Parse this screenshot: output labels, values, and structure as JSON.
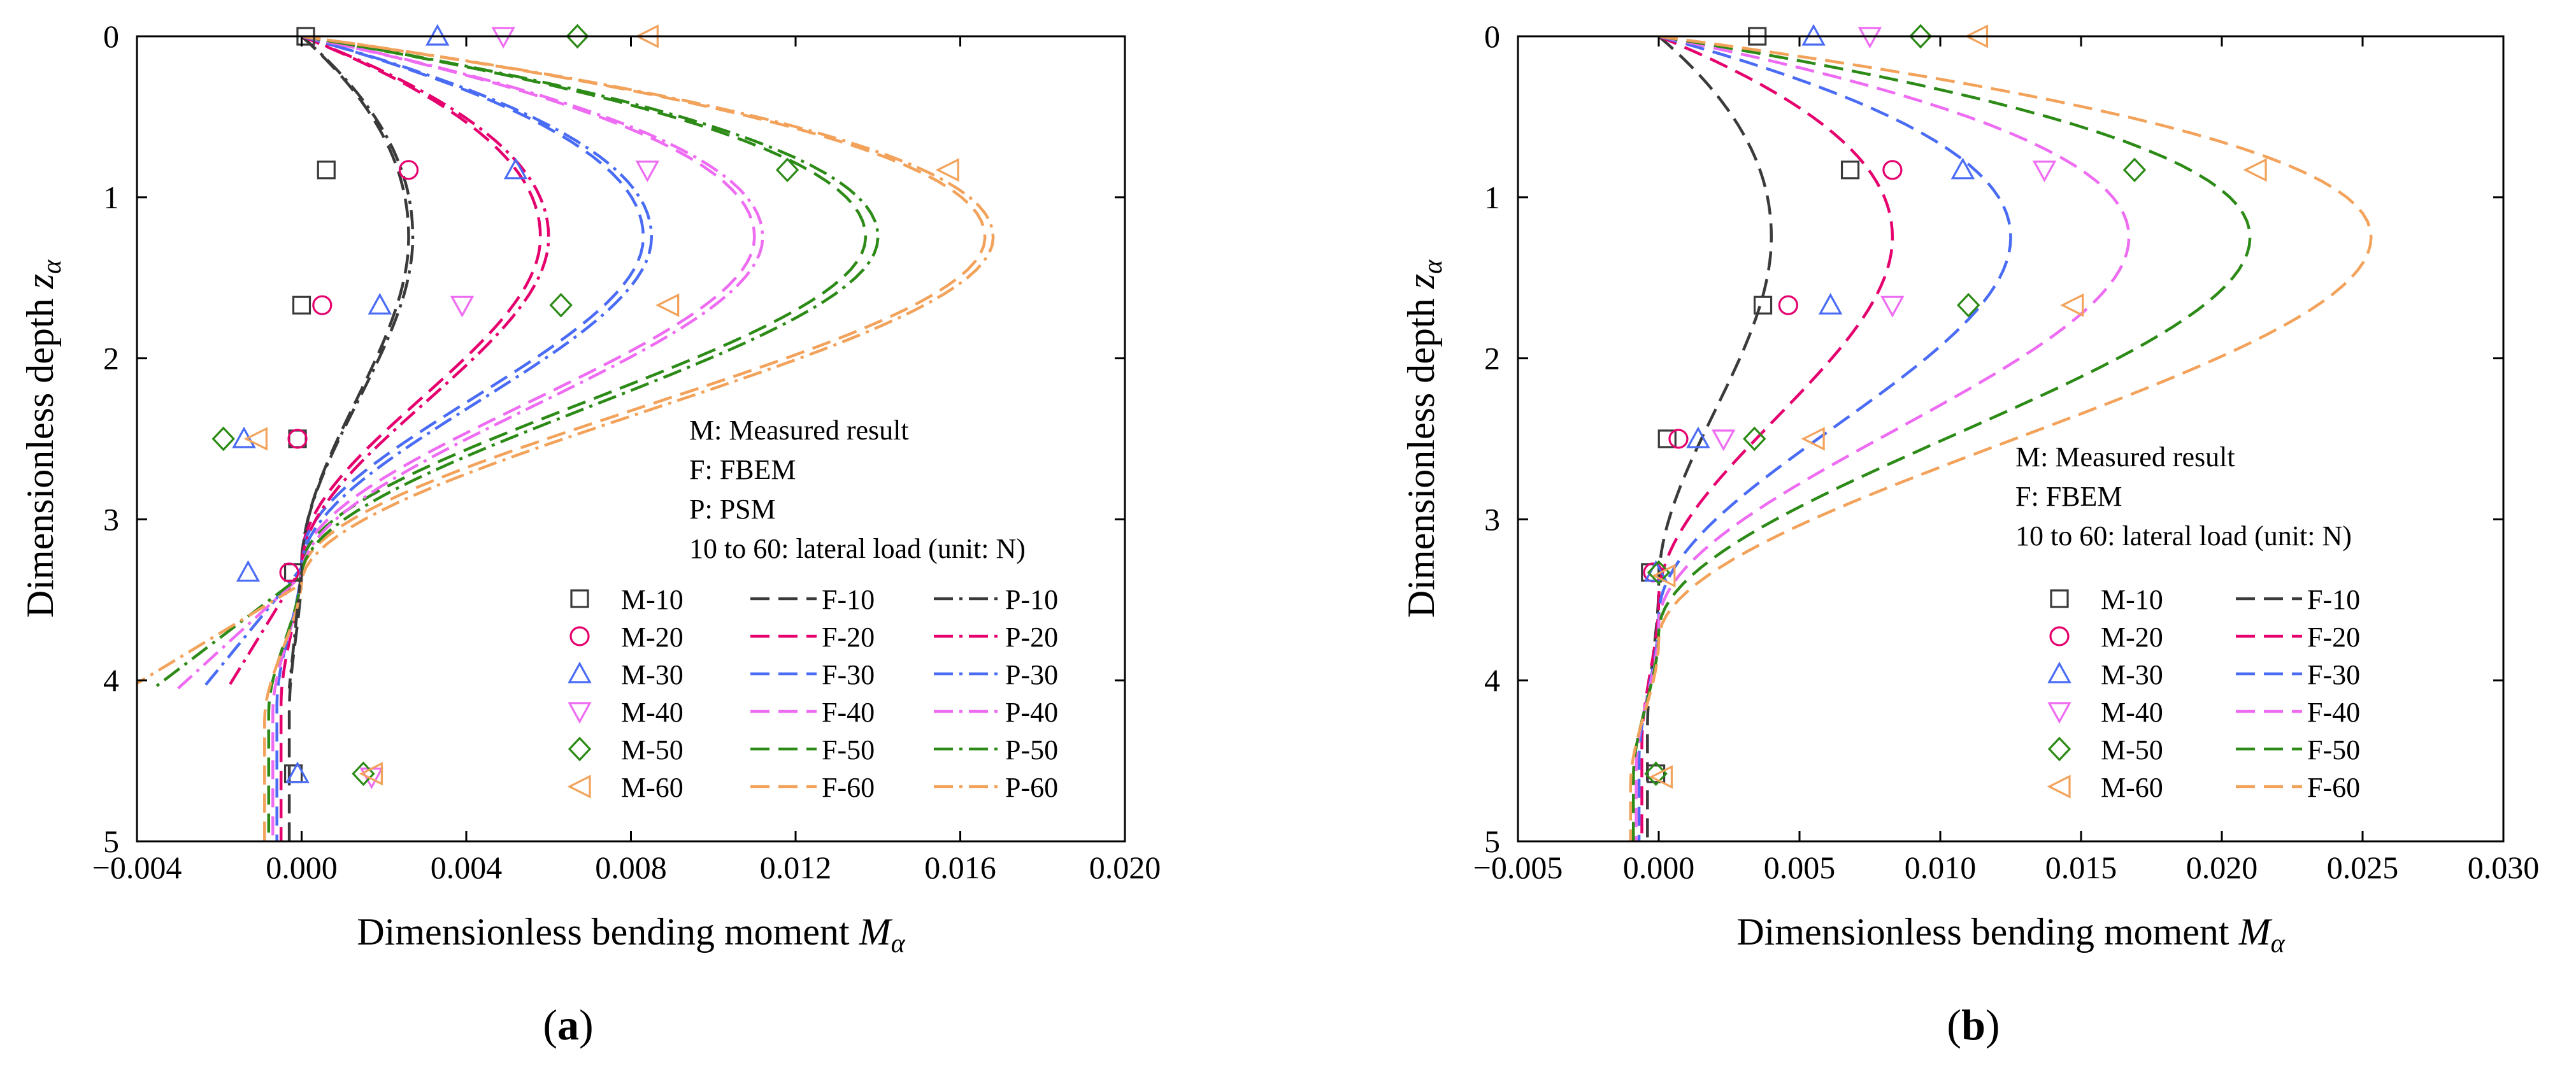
{
  "figure": {
    "panels": [
      "(a)",
      "(b)"
    ]
  },
  "colors": {
    "10": "#3a3a3a",
    "20": "#e5006e",
    "30": "#4a6cf5",
    "40": "#ee6cf2",
    "50": "#2c8a16",
    "60": "#f2a25a"
  },
  "chart_data": [
    {
      "type": "line",
      "panel_label": "(a)",
      "xlabel": "Dimensionless bending moment ",
      "xlabel_symbol": "M",
      "xlabel_sub": "α",
      "ylabel": "Dimensionless depth ",
      "ylabel_symbol": "z",
      "ylabel_sub": "α",
      "xlim": [
        -0.004,
        0.02
      ],
      "ylim": [
        0,
        5
      ],
      "y_inverted": true,
      "x_ticks": [
        -0.004,
        0.0,
        0.004,
        0.008,
        0.012,
        0.016,
        0.02
      ],
      "x_tick_labels": [
        "−0.004",
        "0.000",
        "0.004",
        "0.008",
        "0.012",
        "0.016",
        "0.020"
      ],
      "y_ticks": [
        0,
        1,
        2,
        3,
        4,
        5
      ],
      "y_tick_labels": [
        "0",
        "1",
        "2",
        "3",
        "4",
        "5"
      ],
      "annotation_lines": [
        "M: Measured result",
        "F: FBEM",
        "P: PSM",
        "10 to 60: lateral load (unit: N)"
      ],
      "legend": {
        "measured": [
          "M-10",
          "M-20",
          "M-30",
          "M-40",
          "M-50",
          "M-60"
        ],
        "fbem": [
          "F-10",
          "F-20",
          "F-30",
          "F-40",
          "F-50",
          "F-60"
        ],
        "psm": [
          "P-10",
          "P-20",
          "P-30",
          "P-40",
          "P-50",
          "P-60"
        ]
      },
      "series": [
        {
          "name": "M-10",
          "kind": "measured",
          "load": "10",
          "marker": "square",
          "points": [
            [
              0.0001,
              0.0
            ],
            [
              0.0006,
              0.83
            ],
            [
              0.0,
              1.67
            ],
            [
              -0.0001,
              2.5
            ],
            [
              -0.0002,
              3.33
            ],
            [
              -0.0002,
              4.58
            ]
          ]
        },
        {
          "name": "M-20",
          "kind": "measured",
          "load": "20",
          "marker": "circle",
          "points": [
            [
              0.0026,
              0.83
            ],
            [
              0.0005,
              1.67
            ],
            [
              -0.0001,
              2.5
            ],
            [
              -0.0003,
              3.33
            ]
          ]
        },
        {
          "name": "M-30",
          "kind": "measured",
          "load": "30",
          "marker": "triangle-up",
          "points": [
            [
              0.0033,
              0.0
            ],
            [
              0.0052,
              0.83
            ],
            [
              0.0019,
              1.67
            ],
            [
              -0.0014,
              2.5
            ],
            [
              -0.0013,
              3.33
            ],
            [
              -0.0001,
              4.58
            ]
          ]
        },
        {
          "name": "M-40",
          "kind": "measured",
          "load": "40",
          "marker": "triangle-down",
          "points": [
            [
              0.0049,
              0.0
            ],
            [
              0.0084,
              0.83
            ],
            [
              0.0039,
              1.67
            ],
            [
              0.0017,
              4.6
            ]
          ]
        },
        {
          "name": "M-50",
          "kind": "measured",
          "load": "50",
          "marker": "diamond",
          "points": [
            [
              0.0067,
              0.0
            ],
            [
              0.0118,
              0.83
            ],
            [
              0.0063,
              1.67
            ],
            [
              -0.0019,
              2.5
            ],
            [
              0.0015,
              4.58
            ]
          ]
        },
        {
          "name": "M-60",
          "kind": "measured",
          "load": "60",
          "marker": "triangle-left",
          "points": [
            [
              0.0084,
              0.0
            ],
            [
              0.0157,
              0.83
            ],
            [
              0.0089,
              1.67
            ],
            [
              -0.0011,
              2.5
            ],
            [
              0.0017,
              4.58
            ]
          ]
        },
        {
          "name": "F-10",
          "kind": "fbem",
          "load": "10",
          "peak": 0.0026,
          "z_zero": 3.3,
          "tail": -0.0003
        },
        {
          "name": "F-20",
          "kind": "fbem",
          "load": "20",
          "peak": 0.0058,
          "z_zero": 3.25,
          "tail": -0.0005
        },
        {
          "name": "F-30",
          "kind": "fbem",
          "load": "30",
          "peak": 0.0083,
          "z_zero": 3.25,
          "tail": -0.0006
        },
        {
          "name": "F-40",
          "kind": "fbem",
          "load": "40",
          "peak": 0.011,
          "z_zero": 3.3,
          "tail": -0.0007
        },
        {
          "name": "F-50",
          "kind": "fbem",
          "load": "50",
          "peak": 0.0137,
          "z_zero": 3.3,
          "tail": -0.0008
        },
        {
          "name": "F-60",
          "kind": "fbem",
          "load": "60",
          "peak": 0.0166,
          "z_zero": 3.35,
          "tail": -0.0009
        },
        {
          "name": "P-10",
          "kind": "psm",
          "load": "10",
          "peak": 0.0027,
          "z_zero": 3.3,
          "tail": -0.0003
        },
        {
          "name": "P-20",
          "kind": "psm",
          "load": "20",
          "peak": 0.006,
          "z_zero": 3.3,
          "tail": -0.0018
        },
        {
          "name": "P-30",
          "kind": "psm",
          "load": "30",
          "peak": 0.0085,
          "z_zero": 3.3,
          "tail": -0.0024
        },
        {
          "name": "P-40",
          "kind": "psm",
          "load": "40",
          "peak": 0.0112,
          "z_zero": 3.35,
          "tail": -0.003
        },
        {
          "name": "P-50",
          "kind": "psm",
          "load": "50",
          "peak": 0.014,
          "z_zero": 3.35,
          "tail": -0.0036
        },
        {
          "name": "P-60",
          "kind": "psm",
          "load": "60",
          "peak": 0.0168,
          "z_zero": 3.4,
          "tail": -0.0042
        }
      ]
    },
    {
      "type": "line",
      "panel_label": "(b)",
      "xlabel": "Dimensionless bending moment ",
      "xlabel_symbol": "M",
      "xlabel_sub": "α",
      "ylabel": "Dimensionless depth ",
      "ylabel_symbol": "z",
      "ylabel_sub": "α",
      "xlim": [
        -0.005,
        0.03
      ],
      "ylim": [
        0,
        5
      ],
      "y_inverted": true,
      "x_ticks": [
        -0.005,
        0.0,
        0.005,
        0.01,
        0.015,
        0.02,
        0.025,
        0.03
      ],
      "x_tick_labels": [
        "−0.005",
        "0.000",
        "0.005",
        "0.010",
        "0.015",
        "0.020",
        "0.025",
        "0.030"
      ],
      "y_ticks": [
        0,
        1,
        2,
        3,
        4,
        5
      ],
      "y_tick_labels": [
        "0",
        "1",
        "2",
        "3",
        "4",
        "5"
      ],
      "annotation_lines": [
        "M: Measured result",
        "F: FBEM",
        "10 to 60: lateral load (unit: N)"
      ],
      "legend": {
        "measured": [
          "M-10",
          "M-20",
          "M-30",
          "M-40",
          "M-50",
          "M-60"
        ],
        "fbem": [
          "F-10",
          "F-20",
          "F-30",
          "F-40",
          "F-50",
          "F-60"
        ]
      },
      "series": [
        {
          "name": "M-10",
          "kind": "measured",
          "load": "10",
          "marker": "square",
          "points": [
            [
              0.0035,
              0.0
            ],
            [
              0.0068,
              0.83
            ],
            [
              0.0037,
              1.67
            ],
            [
              0.0003,
              2.5
            ],
            [
              -0.0003,
              3.33
            ],
            [
              -0.0001,
              4.58
            ]
          ]
        },
        {
          "name": "M-20",
          "kind": "measured",
          "load": "20",
          "marker": "circle",
          "points": [
            [
              0.0083,
              0.83
            ],
            [
              0.0046,
              1.67
            ],
            [
              0.0007,
              2.5
            ],
            [
              -0.0002,
              3.33
            ]
          ]
        },
        {
          "name": "M-30",
          "kind": "measured",
          "load": "30",
          "marker": "triangle-up",
          "points": [
            [
              0.0055,
              0.0
            ],
            [
              0.0108,
              0.83
            ],
            [
              0.0061,
              1.67
            ],
            [
              0.0014,
              2.5
            ],
            [
              -0.0001,
              3.33
            ]
          ]
        },
        {
          "name": "M-40",
          "kind": "measured",
          "load": "40",
          "marker": "triangle-down",
          "points": [
            [
              0.0075,
              0.0
            ],
            [
              0.0137,
              0.83
            ],
            [
              0.0083,
              1.67
            ],
            [
              0.0023,
              2.5
            ]
          ]
        },
        {
          "name": "M-50",
          "kind": "measured",
          "load": "50",
          "marker": "diamond",
          "points": [
            [
              0.0093,
              0.0
            ],
            [
              0.0169,
              0.83
            ],
            [
              0.011,
              1.67
            ],
            [
              0.0034,
              2.5
            ],
            [
              0.0,
              3.33
            ],
            [
              -0.0001,
              4.58
            ]
          ]
        },
        {
          "name": "M-60",
          "kind": "measured",
          "load": "60",
          "marker": "triangle-left",
          "points": [
            [
              0.0113,
              0.0
            ],
            [
              0.0212,
              0.83
            ],
            [
              0.0147,
              1.67
            ],
            [
              0.0055,
              2.5
            ],
            [
              0.0002,
              3.35
            ],
            [
              0.0001,
              4.6
            ]
          ]
        },
        {
          "name": "F-10",
          "kind": "fbem",
          "load": "10",
          "peak": 0.004,
          "z_zero": 3.4,
          "tail": -0.0004
        },
        {
          "name": "F-20",
          "kind": "fbem",
          "load": "20",
          "peak": 0.0083,
          "z_zero": 3.5,
          "tail": -0.0006
        },
        {
          "name": "F-30",
          "kind": "fbem",
          "load": "30",
          "peak": 0.0125,
          "z_zero": 3.6,
          "tail": -0.0007
        },
        {
          "name": "F-40",
          "kind": "fbem",
          "load": "40",
          "peak": 0.0167,
          "z_zero": 3.65,
          "tail": -0.0008
        },
        {
          "name": "F-50",
          "kind": "fbem",
          "load": "50",
          "peak": 0.021,
          "z_zero": 3.7,
          "tail": -0.0009
        },
        {
          "name": "F-60",
          "kind": "fbem",
          "load": "60",
          "peak": 0.0253,
          "z_zero": 3.75,
          "tail": -0.001
        }
      ]
    }
  ]
}
